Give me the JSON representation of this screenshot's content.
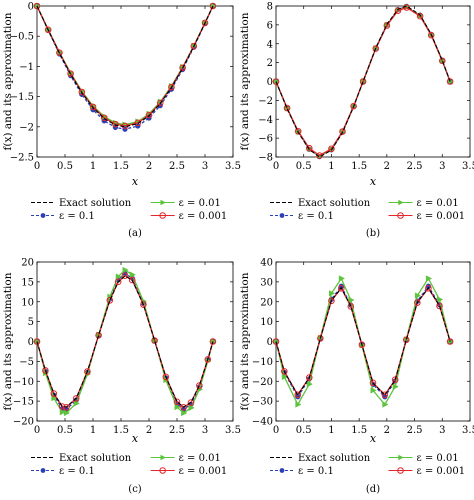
{
  "figure_title": "",
  "legend_labels": {
    "exact": "Exact solution",
    "eps1": "ε = 0.1",
    "eps2": "ε = 0.01",
    "eps3": "ε = 0.001"
  },
  "colors": {
    "exact": "#000000",
    "eps1": "#2a3fb5",
    "eps2": "#5cc43c",
    "eps3": "#e6252a"
  },
  "chart_data": [
    {
      "panel_label": "(a)",
      "type": "line",
      "title": "",
      "xlabel": "x",
      "ylabel": "f(x) and its approximation",
      "xlim": [
        0,
        3.5
      ],
      "ylim": [
        -2.5,
        0
      ],
      "xticks": [
        "0",
        "0.5",
        "1",
        "1.5",
        "2",
        "2.5",
        "3",
        "3.5"
      ],
      "yticks": [
        "0",
        "−0.5",
        "−1",
        "−1.5",
        "−2",
        "−2.5"
      ],
      "x": [
        0,
        0.2,
        0.4,
        0.6,
        0.8,
        1.0,
        1.2,
        1.4,
        1.571,
        1.8,
        2.0,
        2.2,
        2.4,
        2.6,
        2.8,
        3.0,
        3.1416
      ],
      "series": [
        {
          "name": "Exact solution",
          "values": [
            0,
            -0.397,
            -0.779,
            -1.129,
            -1.435,
            -1.683,
            -1.864,
            -1.971,
            -2.0,
            -1.948,
            -1.819,
            -1.617,
            -1.351,
            -1.031,
            -0.67,
            -0.282,
            0
          ]
        },
        {
          "name": "ε = 0.1",
          "values": [
            0,
            -0.404,
            -0.794,
            -1.152,
            -1.463,
            -1.717,
            -1.901,
            -2.01,
            -2.04,
            -1.987,
            -1.855,
            -1.65,
            -1.378,
            -1.052,
            -0.683,
            -0.288,
            0
          ]
        },
        {
          "name": "ε = 0.01",
          "values": [
            0,
            -0.39,
            -0.765,
            -1.109,
            -1.409,
            -1.653,
            -1.83,
            -1.936,
            -1.964,
            -1.913,
            -1.786,
            -1.588,
            -1.327,
            -1.012,
            -0.658,
            -0.277,
            0
          ]
        },
        {
          "name": "ε = 0.001",
          "values": [
            0,
            -0.394,
            -0.773,
            -1.12,
            -1.424,
            -1.67,
            -1.85,
            -1.956,
            -1.985,
            -1.934,
            -1.805,
            -1.605,
            -1.341,
            -1.023,
            -0.665,
            -0.28,
            0
          ]
        }
      ]
    },
    {
      "panel_label": "(b)",
      "type": "line",
      "title": "",
      "xlabel": "x",
      "ylabel": "f(x) and its approximation",
      "xlim": [
        0,
        3.5
      ],
      "ylim": [
        -8,
        8
      ],
      "xticks": [
        "0",
        "0.5",
        "1",
        "1.5",
        "2",
        "2.5",
        "3",
        "3.5"
      ],
      "yticks": [
        "8",
        "6",
        "4",
        "2",
        "0",
        "−2",
        "−4",
        "−6",
        "−8"
      ],
      "x": [
        0,
        0.2,
        0.4,
        0.6,
        0.785,
        1.0,
        1.2,
        1.4,
        1.571,
        1.8,
        2.0,
        2.2,
        2.356,
        2.6,
        2.8,
        3.0,
        3.1416
      ],
      "series": [
        {
          "name": "Exact solution",
          "values": [
            0,
            -2.868,
            -5.38,
            -7.212,
            -8.0,
            -7.274,
            -5.405,
            -2.668,
            0,
            3.558,
            6.054,
            7.652,
            8.0,
            7.059,
            5.008,
            2.235,
            0
          ]
        },
        {
          "name": "ε = 0.1",
          "values": [
            0,
            -2.854,
            -5.353,
            -7.176,
            -7.96,
            -7.238,
            -5.378,
            -2.655,
            0,
            3.54,
            6.024,
            7.614,
            7.96,
            7.024,
            4.983,
            2.224,
            0
          ]
        },
        {
          "name": "ε = 0.01",
          "values": [
            0,
            -2.832,
            -5.313,
            -7.122,
            -7.9,
            -7.183,
            -5.337,
            -2.635,
            0,
            3.514,
            5.978,
            7.556,
            7.9,
            6.971,
            4.945,
            2.207,
            0
          ]
        },
        {
          "name": "ε = 0.001",
          "values": [
            0,
            -2.811,
            -5.272,
            -7.068,
            -7.84,
            -7.129,
            -5.297,
            -2.615,
            0,
            3.487,
            5.933,
            7.499,
            7.84,
            6.918,
            4.908,
            2.19,
            0
          ]
        }
      ]
    },
    {
      "panel_label": "(c)",
      "type": "line",
      "title": "",
      "xlabel": "x",
      "ylabel": "f(x) and its approximation",
      "xlim": [
        0,
        3.5
      ],
      "ylim": [
        -20,
        20
      ],
      "xticks": [
        "0",
        "0.5",
        "1",
        "1.5",
        "2",
        "2.5",
        "3",
        "3.5"
      ],
      "yticks": [
        "20",
        "15",
        "10",
        "5",
        "0",
        "−5",
        "−10",
        "−15",
        "−20"
      ],
      "x": [
        0,
        0.15,
        0.3,
        0.45,
        0.524,
        0.7,
        0.9,
        1.1,
        1.3,
        1.45,
        1.571,
        1.7,
        1.9,
        2.1,
        2.3,
        2.5,
        2.618,
        2.75,
        2.9,
        3.05,
        3.1416
      ],
      "series": [
        {
          "name": "Exact solution",
          "values": [
            0,
            -7.27,
            -13.05,
            -16.31,
            -16.5,
            -14.27,
            -7.53,
            1.55,
            10.32,
            14.97,
            16.5,
            15.42,
            9.28,
            0.23,
            -8.87,
            -15.13,
            -16.5,
            -15.31,
            -11.05,
            -4.5,
            0
          ]
        },
        {
          "name": "ε = 0.1",
          "values": [
            0,
            -7.52,
            -13.49,
            -16.86,
            -17.06,
            -14.76,
            -7.79,
            1.6,
            10.67,
            15.48,
            17.06,
            15.95,
            9.59,
            0.24,
            -9.17,
            -15.64,
            -17.06,
            -15.83,
            -11.43,
            -4.65,
            0
          ]
        },
        {
          "name": "ε = 0.01",
          "values": [
            0,
            -7.93,
            -14.23,
            -17.78,
            -17.99,
            -15.56,
            -8.21,
            1.69,
            11.25,
            16.32,
            17.99,
            16.81,
            10.12,
            0.25,
            -9.67,
            -16.49,
            -17.99,
            -16.69,
            -12.05,
            -4.91,
            0
          ]
        },
        {
          "name": "ε = 0.001",
          "values": [
            0,
            -7.29,
            -13.09,
            -16.36,
            -16.55,
            -14.31,
            -7.55,
            1.55,
            10.35,
            15.01,
            16.55,
            15.47,
            9.31,
            0.23,
            -8.9,
            -15.17,
            -16.55,
            -15.36,
            -11.08,
            -4.51,
            0
          ]
        }
      ]
    },
    {
      "panel_label": "(d)",
      "type": "line",
      "title": "",
      "xlabel": "x",
      "ylabel": "f(x) and its approximation",
      "xlim": [
        0,
        3.5
      ],
      "ylim": [
        -40,
        40
      ],
      "xticks": [
        "0",
        "0.5",
        "1",
        "1.5",
        "2",
        "2.5",
        "3",
        "3.5"
      ],
      "yticks": [
        "40",
        "30",
        "20",
        "10",
        "0",
        "−10",
        "−20",
        "−30",
        "−40"
      ],
      "x": [
        0,
        0.15,
        0.393,
        0.6,
        0.8,
        1.0,
        1.178,
        1.35,
        1.55,
        1.75,
        1.963,
        2.15,
        2.35,
        2.55,
        2.749,
        2.95,
        3.1416
      ],
      "series": [
        {
          "name": "Exact solution",
          "values": [
            0,
            -15.14,
            -27.0,
            -18.29,
            1.57,
            20.64,
            27.0,
            17.77,
            -1.62,
            -20.95,
            -27.0,
            -19.36,
            0.87,
            19.69,
            27.0,
            17.99,
            0
          ]
        },
        {
          "name": "ε = 0.1",
          "values": [
            0,
            -15.58,
            -27.8,
            -18.83,
            1.62,
            21.25,
            27.8,
            18.29,
            -1.67,
            -21.57,
            -27.8,
            -19.93,
            0.89,
            20.27,
            27.8,
            18.52,
            0
          ]
        },
        {
          "name": "ε = 0.01",
          "values": [
            0,
            -17.77,
            -31.7,
            -21.47,
            1.84,
            24.23,
            31.7,
            20.86,
            -1.9,
            -24.59,
            -31.7,
            -22.73,
            1.02,
            23.11,
            31.7,
            21.12,
            0
          ]
        },
        {
          "name": "ε = 0.001",
          "values": [
            0,
            -15.03,
            -26.8,
            -18.15,
            1.56,
            20.49,
            26.8,
            17.64,
            -1.61,
            -20.79,
            -26.8,
            -19.22,
            0.86,
            19.54,
            26.8,
            17.86,
            0
          ]
        }
      ]
    }
  ]
}
